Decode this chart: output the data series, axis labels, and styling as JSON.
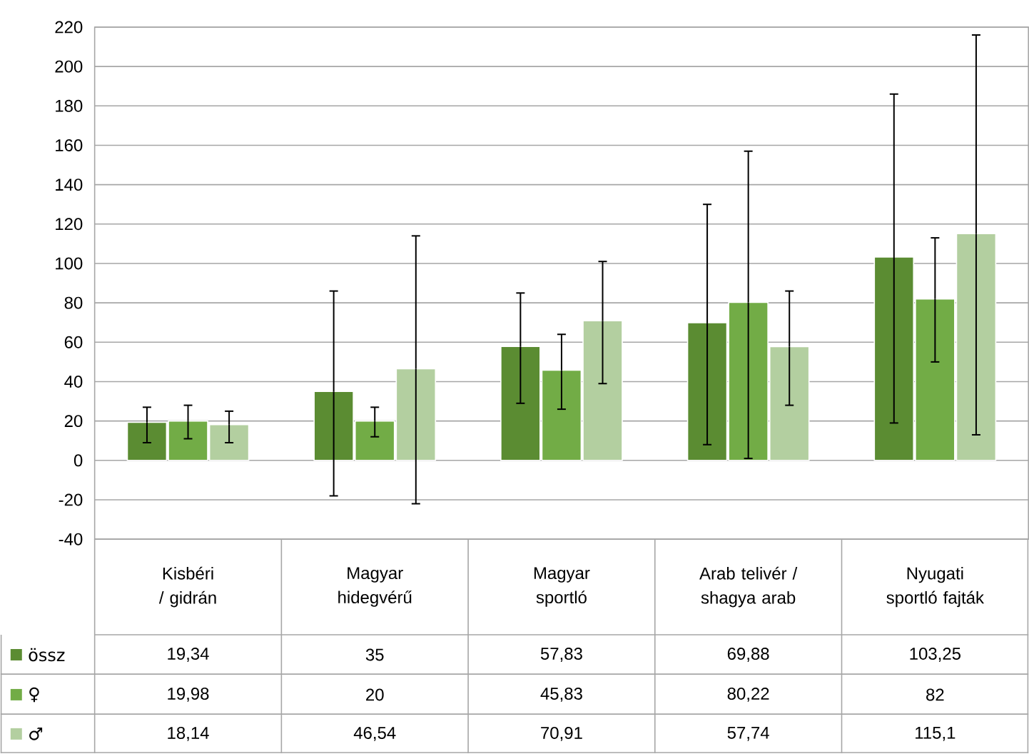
{
  "chart_data": {
    "type": "bar",
    "categories": [
      "Kisbéri / gidrán",
      "Magyar hidegvérű",
      "Magyar sportló",
      "Arab telivér / shagya arab",
      "Nyugati sportló fajták"
    ],
    "series": [
      {
        "name": "össz",
        "color": "#5b8c32",
        "values": [
          19.34,
          35,
          57.83,
          69.88,
          103.25
        ],
        "value_labels": [
          "19,34",
          "35",
          "57,83",
          "69,88",
          "103,25"
        ],
        "errors": [
          [
            9,
            27
          ],
          [
            -18,
            86
          ],
          [
            29,
            85
          ],
          [
            8,
            130
          ],
          [
            19,
            186
          ]
        ]
      },
      {
        "name": "♀",
        "color": "#72ac46",
        "values": [
          19.98,
          20,
          45.83,
          80.22,
          82
        ],
        "value_labels": [
          "19,98",
          "20",
          "45,83",
          "80,22",
          "82"
        ],
        "errors": [
          [
            11,
            28
          ],
          [
            12,
            27
          ],
          [
            26,
            64
          ],
          [
            1,
            157
          ],
          [
            50,
            113
          ]
        ]
      },
      {
        "name": "♂",
        "color": "#b3cfa0",
        "values": [
          18.14,
          46.54,
          70.91,
          57.74,
          115.1
        ],
        "value_labels": [
          "18,14",
          "46,54",
          "70,91",
          "57,74",
          "115,1"
        ],
        "errors": [
          [
            9,
            25
          ],
          [
            -22,
            114
          ],
          [
            39,
            101
          ],
          [
            28,
            86
          ],
          [
            13,
            216
          ]
        ]
      }
    ],
    "ylim": [
      -40,
      220
    ],
    "yticks": [
      -40,
      -20,
      0,
      20,
      40,
      60,
      80,
      100,
      120,
      140,
      160,
      180,
      200,
      220
    ],
    "grid": "y",
    "legend": "bottom"
  }
}
